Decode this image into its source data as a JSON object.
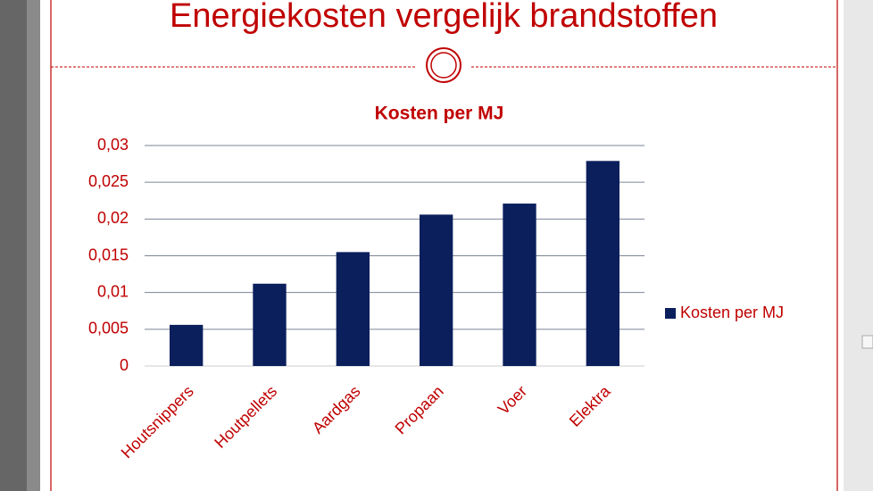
{
  "chart_data": {
    "type": "bar",
    "slide_title": "Energiekosten vergelijk brandstoffen",
    "title": "Kosten per MJ",
    "categories": [
      "Houtsnippers",
      "Houtpellets",
      "Aardgas",
      "Propaan",
      "Voer",
      "Elektra"
    ],
    "series": [
      {
        "name": "Kosten per MJ",
        "color": "#0b1f5c",
        "values": [
          0.0056,
          0.0112,
          0.0155,
          0.0206,
          0.0221,
          0.0279
        ]
      }
    ],
    "ylim": [
      0,
      0.03
    ],
    "yticks": [
      0,
      {
        "value": 0.005,
        "label": "0,005"
      },
      {
        "value": 0.01,
        "label": "0,01"
      },
      {
        "value": 0.015,
        "label": "0,015"
      },
      {
        "value": 0.02,
        "label": "0,02"
      },
      {
        "value": 0.025,
        "label": "0,025"
      },
      {
        "value": 0.03,
        "label": "0,03"
      }
    ],
    "grid": true,
    "legend": "right"
  }
}
